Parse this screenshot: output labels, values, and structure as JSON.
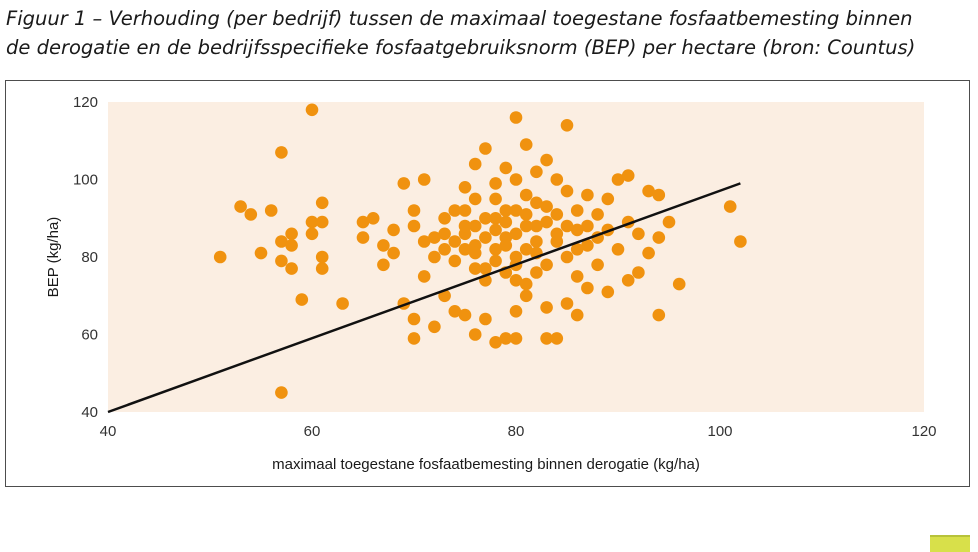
{
  "figure": {
    "title_line1": "Figuur 1 – Verhouding (per bedrijf) tussen de maximaal toegestane fosfaatbemesting binnen",
    "title_line2": "de derogatie en de bedrijfsspecifieke fosfaatgebruiksnorm (BEP) per hectare (bron: Countus)"
  },
  "chart_data": {
    "type": "scatter",
    "xlabel": "maximaal toegestane fosfaatbemesting binnen derogatie (kg/ha)",
    "ylabel": "BEP (kg/ha)",
    "xlim": [
      40,
      120
    ],
    "ylim": [
      40,
      120
    ],
    "xticks": [
      "40",
      "60",
      "80",
      "100",
      "120"
    ],
    "yticks": [
      "40",
      "60",
      "80",
      "100",
      "120"
    ],
    "grid": false,
    "legend": "none",
    "colors": {
      "points": "#f0920f",
      "trend_line": "#111111",
      "plot_background": "#fbeee2"
    },
    "trend_line": {
      "x": [
        40,
        102
      ],
      "y": [
        40,
        99
      ]
    },
    "points": [
      [
        51,
        80
      ],
      [
        53,
        93
      ],
      [
        54,
        91
      ],
      [
        55,
        81
      ],
      [
        56,
        92
      ],
      [
        57,
        107
      ],
      [
        57,
        84
      ],
      [
        58,
        86
      ],
      [
        58,
        83
      ],
      [
        57,
        79
      ],
      [
        58,
        77
      ],
      [
        59,
        69
      ],
      [
        60,
        118
      ],
      [
        60,
        89
      ],
      [
        60,
        86
      ],
      [
        61,
        94
      ],
      [
        61,
        89
      ],
      [
        61,
        80
      ],
      [
        61,
        77
      ],
      [
        63,
        68
      ],
      [
        57,
        45
      ],
      [
        65,
        89
      ],
      [
        65,
        85
      ],
      [
        66,
        90
      ],
      [
        67,
        83
      ],
      [
        67,
        78
      ],
      [
        68,
        87
      ],
      [
        68,
        81
      ],
      [
        69,
        99
      ],
      [
        69,
        68
      ],
      [
        70,
        92
      ],
      [
        70,
        88
      ],
      [
        70,
        64
      ],
      [
        70,
        59
      ],
      [
        71,
        100
      ],
      [
        71,
        84
      ],
      [
        71,
        75
      ],
      [
        72,
        62
      ],
      [
        72,
        80
      ],
      [
        73,
        86
      ],
      [
        73,
        70
      ],
      [
        74,
        92
      ],
      [
        74,
        66
      ],
      [
        75,
        98
      ],
      [
        75,
        82
      ],
      [
        75,
        65
      ],
      [
        76,
        104
      ],
      [
        76,
        95
      ],
      [
        76,
        88
      ],
      [
        76,
        60
      ],
      [
        77,
        108
      ],
      [
        77,
        77
      ],
      [
        77,
        64
      ],
      [
        78,
        99
      ],
      [
        78,
        90
      ],
      [
        78,
        58
      ],
      [
        79,
        103
      ],
      [
        79,
        85
      ],
      [
        79,
        59
      ],
      [
        80,
        116
      ],
      [
        80,
        100
      ],
      [
        80,
        92
      ],
      [
        80,
        74
      ],
      [
        80,
        66
      ],
      [
        80,
        59
      ],
      [
        81,
        109
      ],
      [
        81,
        96
      ],
      [
        81,
        82
      ],
      [
        81,
        70
      ],
      [
        82,
        102
      ],
      [
        82,
        88
      ],
      [
        82,
        76
      ],
      [
        83,
        105
      ],
      [
        83,
        93
      ],
      [
        83,
        67
      ],
      [
        83,
        59
      ],
      [
        84,
        100
      ],
      [
        84,
        84
      ],
      [
        84,
        59
      ],
      [
        85,
        114
      ],
      [
        85,
        97
      ],
      [
        85,
        80
      ],
      [
        85,
        68
      ],
      [
        86,
        92
      ],
      [
        86,
        75
      ],
      [
        86,
        65
      ],
      [
        87,
        96
      ],
      [
        87,
        83
      ],
      [
        87,
        72
      ],
      [
        88,
        91
      ],
      [
        88,
        78
      ],
      [
        89,
        95
      ],
      [
        89,
        87
      ],
      [
        89,
        71
      ],
      [
        90,
        100
      ],
      [
        90,
        82
      ],
      [
        91,
        101
      ],
      [
        91,
        89
      ],
      [
        91,
        74
      ],
      [
        92,
        86
      ],
      [
        92,
        76
      ],
      [
        93,
        97
      ],
      [
        93,
        81
      ],
      [
        94,
        96
      ],
      [
        94,
        85
      ],
      [
        94,
        65
      ],
      [
        95,
        89
      ],
      [
        96,
        73
      ],
      [
        101,
        93
      ],
      [
        102,
        84
      ],
      [
        74,
        84
      ],
      [
        75,
        86
      ],
      [
        76,
        83
      ],
      [
        77,
        85
      ],
      [
        78,
        87
      ],
      [
        79,
        83
      ],
      [
        80,
        86
      ],
      [
        81,
        88
      ],
      [
        82,
        84
      ],
      [
        76,
        81
      ],
      [
        78,
        82
      ],
      [
        80,
        80
      ],
      [
        82,
        81
      ],
      [
        84,
        86
      ],
      [
        79,
        89
      ],
      [
        77,
        90
      ],
      [
        81,
        91
      ],
      [
        83,
        89
      ],
      [
        75,
        88
      ],
      [
        73,
        82
      ],
      [
        86,
        87
      ],
      [
        85,
        88
      ],
      [
        78,
        79
      ],
      [
        80,
        78
      ],
      [
        74,
        79
      ],
      [
        76,
        77
      ],
      [
        72,
        85
      ],
      [
        83,
        78
      ],
      [
        79,
        92
      ],
      [
        82,
        94
      ],
      [
        84,
        91
      ],
      [
        87,
        88
      ],
      [
        88,
        85
      ],
      [
        86,
        82
      ],
      [
        77,
        74
      ],
      [
        79,
        76
      ],
      [
        81,
        73
      ],
      [
        75,
        92
      ],
      [
        73,
        90
      ],
      [
        78,
        95
      ]
    ]
  }
}
